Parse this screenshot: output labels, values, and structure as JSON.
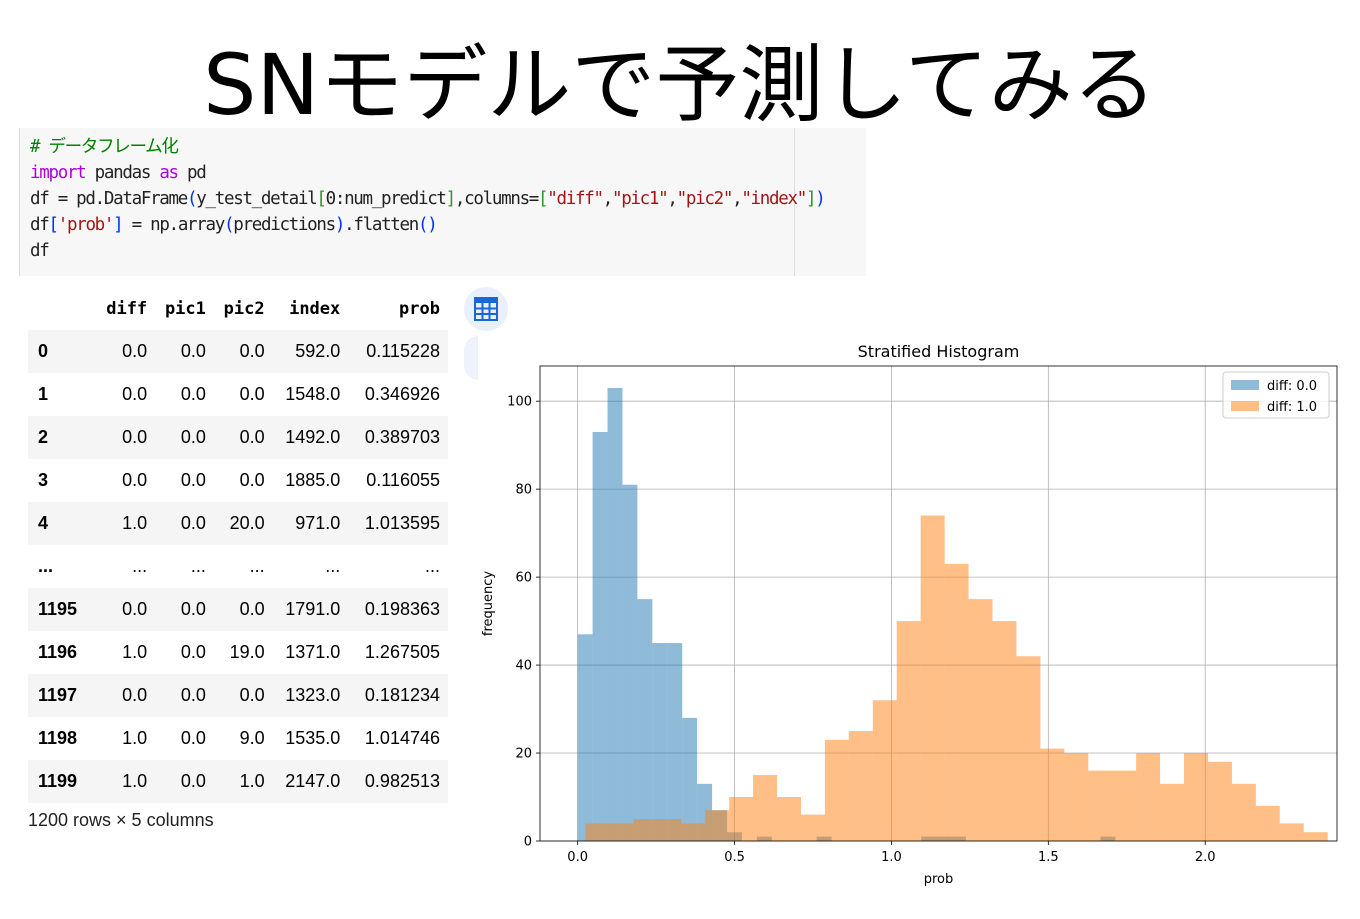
{
  "slide": {
    "title": "SNモデルで予測してみる"
  },
  "code": {
    "lines": [
      [
        {
          "t": "# データフレーム化",
          "c": "comment"
        }
      ],
      [
        {
          "t": "import",
          "c": "kw"
        },
        {
          "t": " pandas ",
          "c": ""
        },
        {
          "t": "as",
          "c": "kw"
        },
        {
          "t": " pd",
          "c": ""
        }
      ],
      [
        {
          "t": "df = pd.DataFrame",
          "c": ""
        },
        {
          "t": "(",
          "c": "br1"
        },
        {
          "t": "y_test_detail",
          "c": ""
        },
        {
          "t": "[",
          "c": "br2"
        },
        {
          "t": "0:num_predict",
          "c": ""
        },
        {
          "t": "]",
          "c": "br2"
        },
        {
          "t": ",columns=",
          "c": ""
        },
        {
          "t": "[",
          "c": "br2"
        },
        {
          "t": "\"diff\"",
          "c": "str"
        },
        {
          "t": ",",
          "c": ""
        },
        {
          "t": "\"pic1\"",
          "c": "str"
        },
        {
          "t": ",",
          "c": ""
        },
        {
          "t": "\"pic2\"",
          "c": "str"
        },
        {
          "t": ",",
          "c": ""
        },
        {
          "t": "\"index\"",
          "c": "str"
        },
        {
          "t": "]",
          "c": "br2"
        },
        {
          "t": ")",
          "c": "br1"
        }
      ],
      [
        {
          "t": "df",
          "c": ""
        },
        {
          "t": "[",
          "c": "br1"
        },
        {
          "t": "'prob'",
          "c": "str"
        },
        {
          "t": "]",
          "c": "br1"
        },
        {
          "t": " = np.array",
          "c": ""
        },
        {
          "t": "(",
          "c": "br1"
        },
        {
          "t": "predictions",
          "c": ""
        },
        {
          "t": ")",
          "c": "br1"
        },
        {
          "t": ".flatten",
          "c": ""
        },
        {
          "t": "()",
          "c": "br1"
        }
      ],
      [
        {
          "t": "df",
          "c": ""
        }
      ]
    ]
  },
  "dataframe": {
    "columns": [
      "diff",
      "pic1",
      "pic2",
      "index",
      "prob"
    ],
    "rows": [
      [
        "0",
        "0.0",
        "0.0",
        "0.0",
        "592.0",
        "0.115228"
      ],
      [
        "1",
        "0.0",
        "0.0",
        "0.0",
        "1548.0",
        "0.346926"
      ],
      [
        "2",
        "0.0",
        "0.0",
        "0.0",
        "1492.0",
        "0.389703"
      ],
      [
        "3",
        "0.0",
        "0.0",
        "0.0",
        "1885.0",
        "0.116055"
      ],
      [
        "4",
        "1.0",
        "0.0",
        "20.0",
        "971.0",
        "1.013595"
      ],
      [
        "...",
        "...",
        "...",
        "...",
        "...",
        "..."
      ],
      [
        "1195",
        "0.0",
        "0.0",
        "0.0",
        "1791.0",
        "0.198363"
      ],
      [
        "1196",
        "1.0",
        "0.0",
        "19.0",
        "1371.0",
        "1.267505"
      ],
      [
        "1197",
        "0.0",
        "0.0",
        "0.0",
        "1323.0",
        "0.181234"
      ],
      [
        "1198",
        "1.0",
        "0.0",
        "9.0",
        "1535.0",
        "1.014746"
      ],
      [
        "1199",
        "1.0",
        "0.0",
        "1.0",
        "2147.0",
        "0.982513"
      ]
    ],
    "footer": "1200 rows × 5 columns"
  },
  "icons": {
    "table_button": "table-grid-icon"
  },
  "chart_data": {
    "type": "bar",
    "title": "Stratified Histogram",
    "xlabel": "prob",
    "ylabel": "frequency",
    "xlim": [
      -0.12,
      2.42
    ],
    "ylim": [
      0,
      108
    ],
    "xticks": [
      0.0,
      0.5,
      1.0,
      1.5,
      2.0
    ],
    "xtick_labels": [
      "0.0",
      "0.5",
      "1.0",
      "1.5",
      "2.0"
    ],
    "yticks": [
      0,
      20,
      40,
      60,
      80,
      100
    ],
    "ytick_labels": [
      "0",
      "20",
      "40",
      "60",
      "80",
      "100"
    ],
    "grid": true,
    "legend_position": "top-right",
    "series": [
      {
        "name": "diff: 0.0",
        "color": "#1f77b4",
        "bin_start": 0.0,
        "bin_width": 0.0476,
        "values": [
          47,
          93,
          103,
          81,
          55,
          45,
          45,
          28,
          13,
          7,
          2,
          0,
          1,
          0,
          0,
          0,
          1,
          0,
          0,
          0,
          0,
          0,
          0,
          1,
          1,
          1,
          0,
          0,
          0,
          0,
          0,
          0,
          0,
          0,
          0,
          1,
          0,
          0,
          0,
          0,
          0,
          0
        ]
      },
      {
        "name": "diff: 1.0",
        "color": "#ff7f0e",
        "bin_start": 0.025,
        "bin_width": 0.0763,
        "values": [
          4,
          4,
          5,
          5,
          4,
          7,
          10,
          15,
          10,
          6,
          23,
          25,
          32,
          50,
          74,
          63,
          55,
          50,
          42,
          21,
          20,
          16,
          16,
          20,
          13,
          20,
          18,
          13,
          8,
          4,
          2
        ]
      }
    ]
  }
}
